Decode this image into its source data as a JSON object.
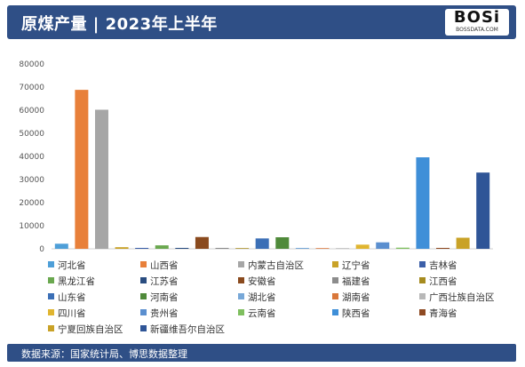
{
  "header": {
    "title": "原煤产量 | 2023年上半年",
    "logo_main": "BOSi",
    "logo_sub": "BOSSDATA.COM"
  },
  "footer": {
    "source": "数据来源：国家统计局、博思数据整理"
  },
  "colors": {
    "header_bg": "#2f4f86"
  },
  "chart_data": {
    "type": "bar",
    "ylim": [
      0,
      80000
    ],
    "yticks": [
      "0",
      "10000",
      "20000",
      "30000",
      "40000",
      "50000",
      "60000",
      "70000",
      "80000"
    ],
    "grid": false,
    "legend_position": "bottom",
    "categories": [
      "河北省",
      "山西省",
      "内蒙古自治区",
      "辽宁省",
      "吉林省",
      "黑龙江省",
      "江苏省",
      "安徽省",
      "福建省",
      "江西省",
      "山东省",
      "河南省",
      "湖北省",
      "湖南省",
      "广西壮族自治区",
      "四川省",
      "贵州省",
      "云南省",
      "陕西省",
      "青海省",
      "宁夏回族自治区",
      "新疆维吾尔自治区"
    ],
    "values": [
      2200,
      68800,
      60200,
      700,
      400,
      1500,
      400,
      5100,
      400,
      300,
      4500,
      5000,
      400,
      300,
      300,
      1800,
      2800,
      500,
      39600,
      400,
      4800,
      33000
    ],
    "colors": [
      "#4e9fd8",
      "#e8803a",
      "#a6a6a6",
      "#c9a227",
      "#3c5fa8",
      "#6aa84f",
      "#2a4d80",
      "#8a4a1e",
      "#8c8c8c",
      "#a68b1f",
      "#3b6fb6",
      "#4f8a3a",
      "#78a8d8",
      "#d9773a",
      "#b8b8b8",
      "#e0b530",
      "#5b8fcf",
      "#7fbf5f",
      "#3f8fd8",
      "#8e4a22",
      "#c9a227",
      "#2f5597"
    ]
  }
}
